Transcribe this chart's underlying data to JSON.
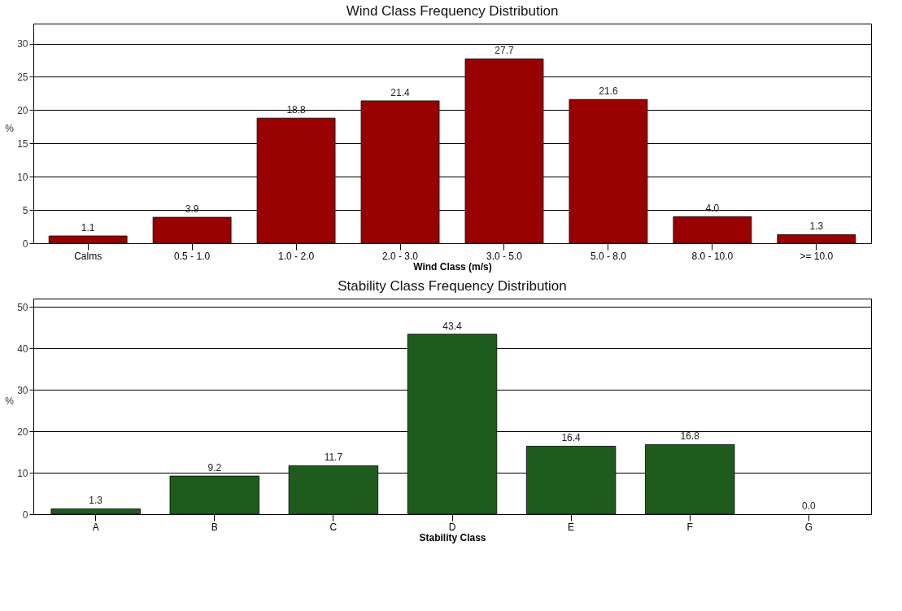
{
  "chart_data": [
    {
      "type": "bar",
      "title": "Wind Class Frequency Distribution",
      "xlabel": "Wind Class (m/s)",
      "ylabel": "%",
      "categories": [
        "Calms",
        "0.5 -  1.0",
        "1.0 -  2.0",
        "2.0 -  3.0",
        "3.0 -  5.0",
        "5.0 -  8.0",
        "8.0 - 10.0",
        ">= 10.0"
      ],
      "values": [
        1.1,
        3.9,
        18.8,
        21.4,
        27.7,
        21.6,
        4.0,
        1.3
      ],
      "value_labels": [
        "1.1",
        "3.9",
        "18.8",
        "21.4",
        "27.7",
        "21.6",
        "4.0",
        "1.3"
      ],
      "color": "#990000",
      "ylim": [
        0,
        33
      ],
      "yticks": [
        0,
        5,
        10,
        15,
        20,
        25,
        30
      ],
      "grid": "y"
    },
    {
      "type": "bar",
      "title": "Stability Class Frequency Distribution",
      "xlabel": "Stability Class",
      "ylabel": "%",
      "categories": [
        "A",
        "B",
        "C",
        "D",
        "E",
        "F",
        "G"
      ],
      "values": [
        1.3,
        9.2,
        11.7,
        43.4,
        16.4,
        16.8,
        0.0
      ],
      "value_labels": [
        "1.3",
        "9.2",
        "11.7",
        "43.4",
        "16.4",
        "16.8",
        "0.0"
      ],
      "color": "#1e5c1e",
      "ylim": [
        0,
        52
      ],
      "yticks": [
        0,
        10,
        20,
        30,
        40,
        50
      ],
      "grid": "y"
    }
  ]
}
